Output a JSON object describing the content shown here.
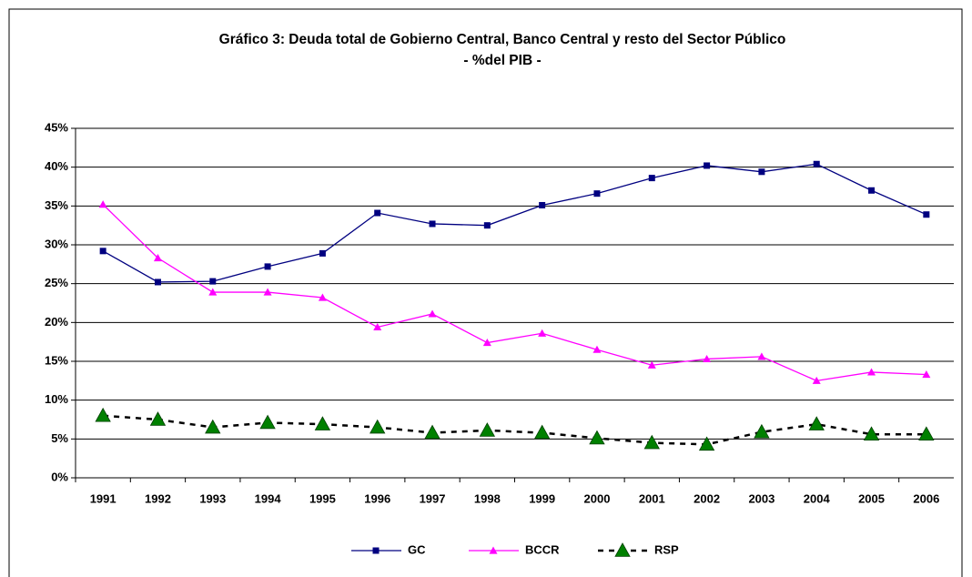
{
  "chart_data": {
    "type": "line",
    "title": "Gráfico 3: Deuda total de Gobierno Central, Banco Central y resto del Sector Público",
    "subtitle": "-  %del PIB -",
    "categories": [
      "1991",
      "1992",
      "1993",
      "1994",
      "1995",
      "1996",
      "1997",
      "1998",
      "1999",
      "2000",
      "2001",
      "2002",
      "2003",
      "2004",
      "2005",
      "2006"
    ],
    "series": [
      {
        "name": "GC",
        "color": "#000080",
        "marker": "square",
        "marker_color": "#000080",
        "dashed": false,
        "values": [
          29.2,
          25.2,
          25.3,
          27.2,
          28.9,
          34.1,
          32.7,
          32.5,
          35.1,
          36.6,
          38.6,
          40.2,
          39.4,
          40.4,
          37.0,
          33.9
        ]
      },
      {
        "name": "BCCR",
        "color": "#ff00ff",
        "marker": "triangle",
        "marker_color": "#ff00ff",
        "dashed": false,
        "values": [
          35.2,
          28.3,
          23.9,
          23.9,
          23.2,
          19.4,
          21.1,
          17.4,
          18.6,
          16.5,
          14.5,
          15.3,
          15.6,
          12.5,
          13.6,
          13.3
        ]
      },
      {
        "name": "RSP",
        "color": "#000000",
        "marker": "big-triangle",
        "marker_color": "#008000",
        "dashed": true,
        "values": [
          8.0,
          7.5,
          6.5,
          7.1,
          6.9,
          6.5,
          5.8,
          6.1,
          5.8,
          5.1,
          4.5,
          4.3,
          5.9,
          6.9,
          5.6,
          5.6
        ]
      }
    ],
    "ylim": [
      0,
      45
    ],
    "yticks": [
      {
        "value": 0,
        "label": "0%"
      },
      {
        "value": 5,
        "label": "5%"
      },
      {
        "value": 10,
        "label": "10%"
      },
      {
        "value": 15,
        "label": "15%"
      },
      {
        "value": 20,
        "label": "20%"
      },
      {
        "value": 25,
        "label": "25%"
      },
      {
        "value": 30,
        "label": "30%"
      },
      {
        "value": 35,
        "label": "35%"
      },
      {
        "value": 40,
        "label": "40%"
      },
      {
        "value": 45,
        "label": "45%"
      }
    ],
    "grid": true,
    "legend": "bottom"
  }
}
